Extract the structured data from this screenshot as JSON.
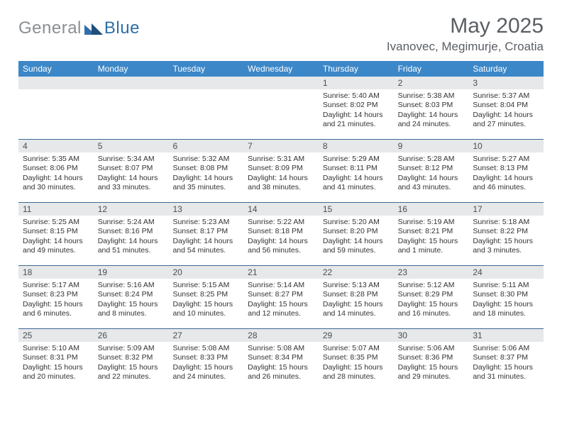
{
  "brand": {
    "general": "General",
    "blue": "Blue",
    "logo_color": "#2f6ea8"
  },
  "title": {
    "month": "May 2025",
    "location": "Ivanovec, Megimurje, Croatia"
  },
  "colors": {
    "header_band": "#3c87c8",
    "day_band": "#e6e8ea",
    "week_divider": "#3c6a95",
    "text_muted": "#5a5f64",
    "text": "#333333",
    "logo_gray": "#8a8f94",
    "logo_blue": "#2f6ea8",
    "background": "#ffffff"
  },
  "typography": {
    "title_fontsize": 30,
    "location_fontsize": 17,
    "weekday_fontsize": 12,
    "daynum_fontsize": 12,
    "body_fontsize": 10.5
  },
  "weekdays": [
    "Sunday",
    "Monday",
    "Tuesday",
    "Wednesday",
    "Thursday",
    "Friday",
    "Saturday"
  ],
  "weeks": [
    [
      null,
      null,
      null,
      null,
      {
        "n": "1",
        "sr": "Sunrise: 5:40 AM",
        "ss": "Sunset: 8:02 PM",
        "d1": "Daylight: 14 hours",
        "d2": "and 21 minutes."
      },
      {
        "n": "2",
        "sr": "Sunrise: 5:38 AM",
        "ss": "Sunset: 8:03 PM",
        "d1": "Daylight: 14 hours",
        "d2": "and 24 minutes."
      },
      {
        "n": "3",
        "sr": "Sunrise: 5:37 AM",
        "ss": "Sunset: 8:04 PM",
        "d1": "Daylight: 14 hours",
        "d2": "and 27 minutes."
      }
    ],
    [
      {
        "n": "4",
        "sr": "Sunrise: 5:35 AM",
        "ss": "Sunset: 8:06 PM",
        "d1": "Daylight: 14 hours",
        "d2": "and 30 minutes."
      },
      {
        "n": "5",
        "sr": "Sunrise: 5:34 AM",
        "ss": "Sunset: 8:07 PM",
        "d1": "Daylight: 14 hours",
        "d2": "and 33 minutes."
      },
      {
        "n": "6",
        "sr": "Sunrise: 5:32 AM",
        "ss": "Sunset: 8:08 PM",
        "d1": "Daylight: 14 hours",
        "d2": "and 35 minutes."
      },
      {
        "n": "7",
        "sr": "Sunrise: 5:31 AM",
        "ss": "Sunset: 8:09 PM",
        "d1": "Daylight: 14 hours",
        "d2": "and 38 minutes."
      },
      {
        "n": "8",
        "sr": "Sunrise: 5:29 AM",
        "ss": "Sunset: 8:11 PM",
        "d1": "Daylight: 14 hours",
        "d2": "and 41 minutes."
      },
      {
        "n": "9",
        "sr": "Sunrise: 5:28 AM",
        "ss": "Sunset: 8:12 PM",
        "d1": "Daylight: 14 hours",
        "d2": "and 43 minutes."
      },
      {
        "n": "10",
        "sr": "Sunrise: 5:27 AM",
        "ss": "Sunset: 8:13 PM",
        "d1": "Daylight: 14 hours",
        "d2": "and 46 minutes."
      }
    ],
    [
      {
        "n": "11",
        "sr": "Sunrise: 5:25 AM",
        "ss": "Sunset: 8:15 PM",
        "d1": "Daylight: 14 hours",
        "d2": "and 49 minutes."
      },
      {
        "n": "12",
        "sr": "Sunrise: 5:24 AM",
        "ss": "Sunset: 8:16 PM",
        "d1": "Daylight: 14 hours",
        "d2": "and 51 minutes."
      },
      {
        "n": "13",
        "sr": "Sunrise: 5:23 AM",
        "ss": "Sunset: 8:17 PM",
        "d1": "Daylight: 14 hours",
        "d2": "and 54 minutes."
      },
      {
        "n": "14",
        "sr": "Sunrise: 5:22 AM",
        "ss": "Sunset: 8:18 PM",
        "d1": "Daylight: 14 hours",
        "d2": "and 56 minutes."
      },
      {
        "n": "15",
        "sr": "Sunrise: 5:20 AM",
        "ss": "Sunset: 8:20 PM",
        "d1": "Daylight: 14 hours",
        "d2": "and 59 minutes."
      },
      {
        "n": "16",
        "sr": "Sunrise: 5:19 AM",
        "ss": "Sunset: 8:21 PM",
        "d1": "Daylight: 15 hours",
        "d2": "and 1 minute."
      },
      {
        "n": "17",
        "sr": "Sunrise: 5:18 AM",
        "ss": "Sunset: 8:22 PM",
        "d1": "Daylight: 15 hours",
        "d2": "and 3 minutes."
      }
    ],
    [
      {
        "n": "18",
        "sr": "Sunrise: 5:17 AM",
        "ss": "Sunset: 8:23 PM",
        "d1": "Daylight: 15 hours",
        "d2": "and 6 minutes."
      },
      {
        "n": "19",
        "sr": "Sunrise: 5:16 AM",
        "ss": "Sunset: 8:24 PM",
        "d1": "Daylight: 15 hours",
        "d2": "and 8 minutes."
      },
      {
        "n": "20",
        "sr": "Sunrise: 5:15 AM",
        "ss": "Sunset: 8:25 PM",
        "d1": "Daylight: 15 hours",
        "d2": "and 10 minutes."
      },
      {
        "n": "21",
        "sr": "Sunrise: 5:14 AM",
        "ss": "Sunset: 8:27 PM",
        "d1": "Daylight: 15 hours",
        "d2": "and 12 minutes."
      },
      {
        "n": "22",
        "sr": "Sunrise: 5:13 AM",
        "ss": "Sunset: 8:28 PM",
        "d1": "Daylight: 15 hours",
        "d2": "and 14 minutes."
      },
      {
        "n": "23",
        "sr": "Sunrise: 5:12 AM",
        "ss": "Sunset: 8:29 PM",
        "d1": "Daylight: 15 hours",
        "d2": "and 16 minutes."
      },
      {
        "n": "24",
        "sr": "Sunrise: 5:11 AM",
        "ss": "Sunset: 8:30 PM",
        "d1": "Daylight: 15 hours",
        "d2": "and 18 minutes."
      }
    ],
    [
      {
        "n": "25",
        "sr": "Sunrise: 5:10 AM",
        "ss": "Sunset: 8:31 PM",
        "d1": "Daylight: 15 hours",
        "d2": "and 20 minutes."
      },
      {
        "n": "26",
        "sr": "Sunrise: 5:09 AM",
        "ss": "Sunset: 8:32 PM",
        "d1": "Daylight: 15 hours",
        "d2": "and 22 minutes."
      },
      {
        "n": "27",
        "sr": "Sunrise: 5:08 AM",
        "ss": "Sunset: 8:33 PM",
        "d1": "Daylight: 15 hours",
        "d2": "and 24 minutes."
      },
      {
        "n": "28",
        "sr": "Sunrise: 5:08 AM",
        "ss": "Sunset: 8:34 PM",
        "d1": "Daylight: 15 hours",
        "d2": "and 26 minutes."
      },
      {
        "n": "29",
        "sr": "Sunrise: 5:07 AM",
        "ss": "Sunset: 8:35 PM",
        "d1": "Daylight: 15 hours",
        "d2": "and 28 minutes."
      },
      {
        "n": "30",
        "sr": "Sunrise: 5:06 AM",
        "ss": "Sunset: 8:36 PM",
        "d1": "Daylight: 15 hours",
        "d2": "and 29 minutes."
      },
      {
        "n": "31",
        "sr": "Sunrise: 5:06 AM",
        "ss": "Sunset: 8:37 PM",
        "d1": "Daylight: 15 hours",
        "d2": "and 31 minutes."
      }
    ]
  ]
}
